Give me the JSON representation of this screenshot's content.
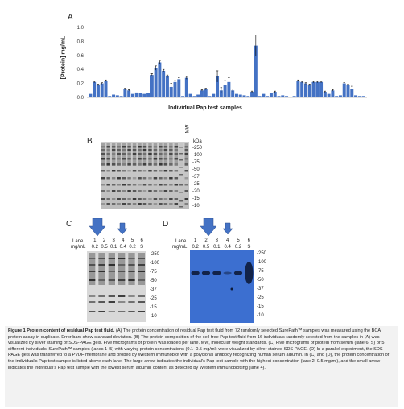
{
  "figure": {
    "panel_labels": {
      "a": "A",
      "b": "B",
      "c": "C",
      "d": "D"
    },
    "panel_a": {
      "ylabel": "[Protein] mg/mL",
      "xlabel": "Individual Pap test samples",
      "yticks": [
        "1.0",
        "0.8",
        "0.6",
        "0.4",
        "0.2",
        "0.0"
      ]
    },
    "panel_b": {
      "mw_header": "kDa",
      "lane_header": "MW",
      "markers": [
        "250",
        "100",
        "75",
        "50",
        "37",
        "25",
        "20",
        "15",
        "10"
      ]
    },
    "panel_c": {
      "lane_label": "Lane",
      "unit_label": "mg/mL",
      "lanes": [
        "1",
        "2",
        "3",
        "4",
        "5",
        "6"
      ],
      "concs": [
        "0.2",
        "0.5",
        "0.1",
        "0.4",
        "0.2",
        "S"
      ],
      "markers": [
        "250",
        "100",
        "75",
        "50",
        "37",
        "25",
        "15",
        "10"
      ]
    },
    "panel_d": {
      "lane_label": "Lane",
      "unit_label": "mg/mL",
      "lanes": [
        "1",
        "2",
        "3",
        "4",
        "5",
        "6"
      ],
      "concs": [
        "0.2",
        "0.5",
        "0.1",
        "0.4",
        "0.2",
        "S"
      ],
      "markers": [
        "250",
        "100",
        "75",
        "50",
        "37",
        "25",
        "15",
        "10"
      ]
    }
  },
  "caption": {
    "title": "Figure 1 Protein content of residual Pap test fluid.",
    "body": " (A) The protein concentration of residual Pap test fluid from 72 randomly selected SurePath™ samples was measured using the BCA protein assay in duplicate. Error bars show standard deviation. (B) The protein composition of the cell-free Pap test fluid from 16 individuals randomly selected from the samples in (A) was visualized by silver staining of SDS-PAGE gels. Five micrograms of protein was loaded per lane. MW, molecular weight standards. (C) Five micrograms of protein from serum (lane 6; S) or 5 different individuals' SurePath™ samples (lanes 1–5) with varying protein concentrations (0.1–0.5 mg/ml) were visualized by silver stained SDS-PAGE. (D) In a parallel experiment, the SDS-PAGE gels was transferred to a PVDF membrane and probed by Western immunoblot with a polyclonal antibody recognizing human serum albumin. In (C) and (D), the protein concentration of the individual's Pap test sample is listed above each lane. The large arrow indicates the individual's Pap test sample with the highest concentration (lane 2; 0.5 mg/ml), and the small arrow indicates the individual's Pap test sample with the lowest serum albumin content as detected by Western immunoblotting (lane 4)."
  },
  "chart_data": {
    "type": "bar",
    "xlabel": "Individual Pap test samples",
    "ylabel": "[Protein] mg/mL",
    "ylim": [
      0,
      1.0
    ],
    "color": "#4472c4",
    "values": [
      0.05,
      0.22,
      0.18,
      0.2,
      0.24,
      0.02,
      0.04,
      0.03,
      0.02,
      0.12,
      0.1,
      0.05,
      0.07,
      0.06,
      0.05,
      0.06,
      0.32,
      0.42,
      0.5,
      0.38,
      0.3,
      0.15,
      0.22,
      0.26,
      0.02,
      0.28,
      0.05,
      0.02,
      0.04,
      0.1,
      0.12,
      0.02,
      0.05,
      0.3,
      0.1,
      0.18,
      0.22,
      0.1,
      0.05,
      0.04,
      0.03,
      0.02,
      0.08,
      0.74,
      0.02,
      0.05,
      0.02,
      0.06,
      0.08,
      0.02,
      0.03,
      0.02,
      0.01,
      0.02,
      0.24,
      0.22,
      0.2,
      0.18,
      0.22,
      0.22,
      0.22,
      0.08,
      0.05,
      0.1,
      0.02,
      0.03,
      0.2,
      0.18,
      0.12,
      0.03,
      0.02,
      0.02
    ],
    "errors": [
      0,
      0.01,
      0.01,
      0.01,
      0.01,
      0,
      0,
      0,
      0,
      0.01,
      0.01,
      0,
      0,
      0,
      0,
      0,
      0.02,
      0.03,
      0.02,
      0.02,
      0.02,
      0.05,
      0.02,
      0.02,
      0,
      0.02,
      0,
      0,
      0,
      0.01,
      0.01,
      0,
      0,
      0.08,
      0.04,
      0.06,
      0.06,
      0.02,
      0,
      0,
      0,
      0,
      0.01,
      0.15,
      0,
      0,
      0,
      0,
      0.01,
      0,
      0,
      0,
      0,
      0,
      0.01,
      0.01,
      0.01,
      0.01,
      0.01,
      0.01,
      0.01,
      0.01,
      0,
      0.01,
      0,
      0,
      0.01,
      0.01,
      0.04,
      0,
      0,
      0
    ]
  }
}
